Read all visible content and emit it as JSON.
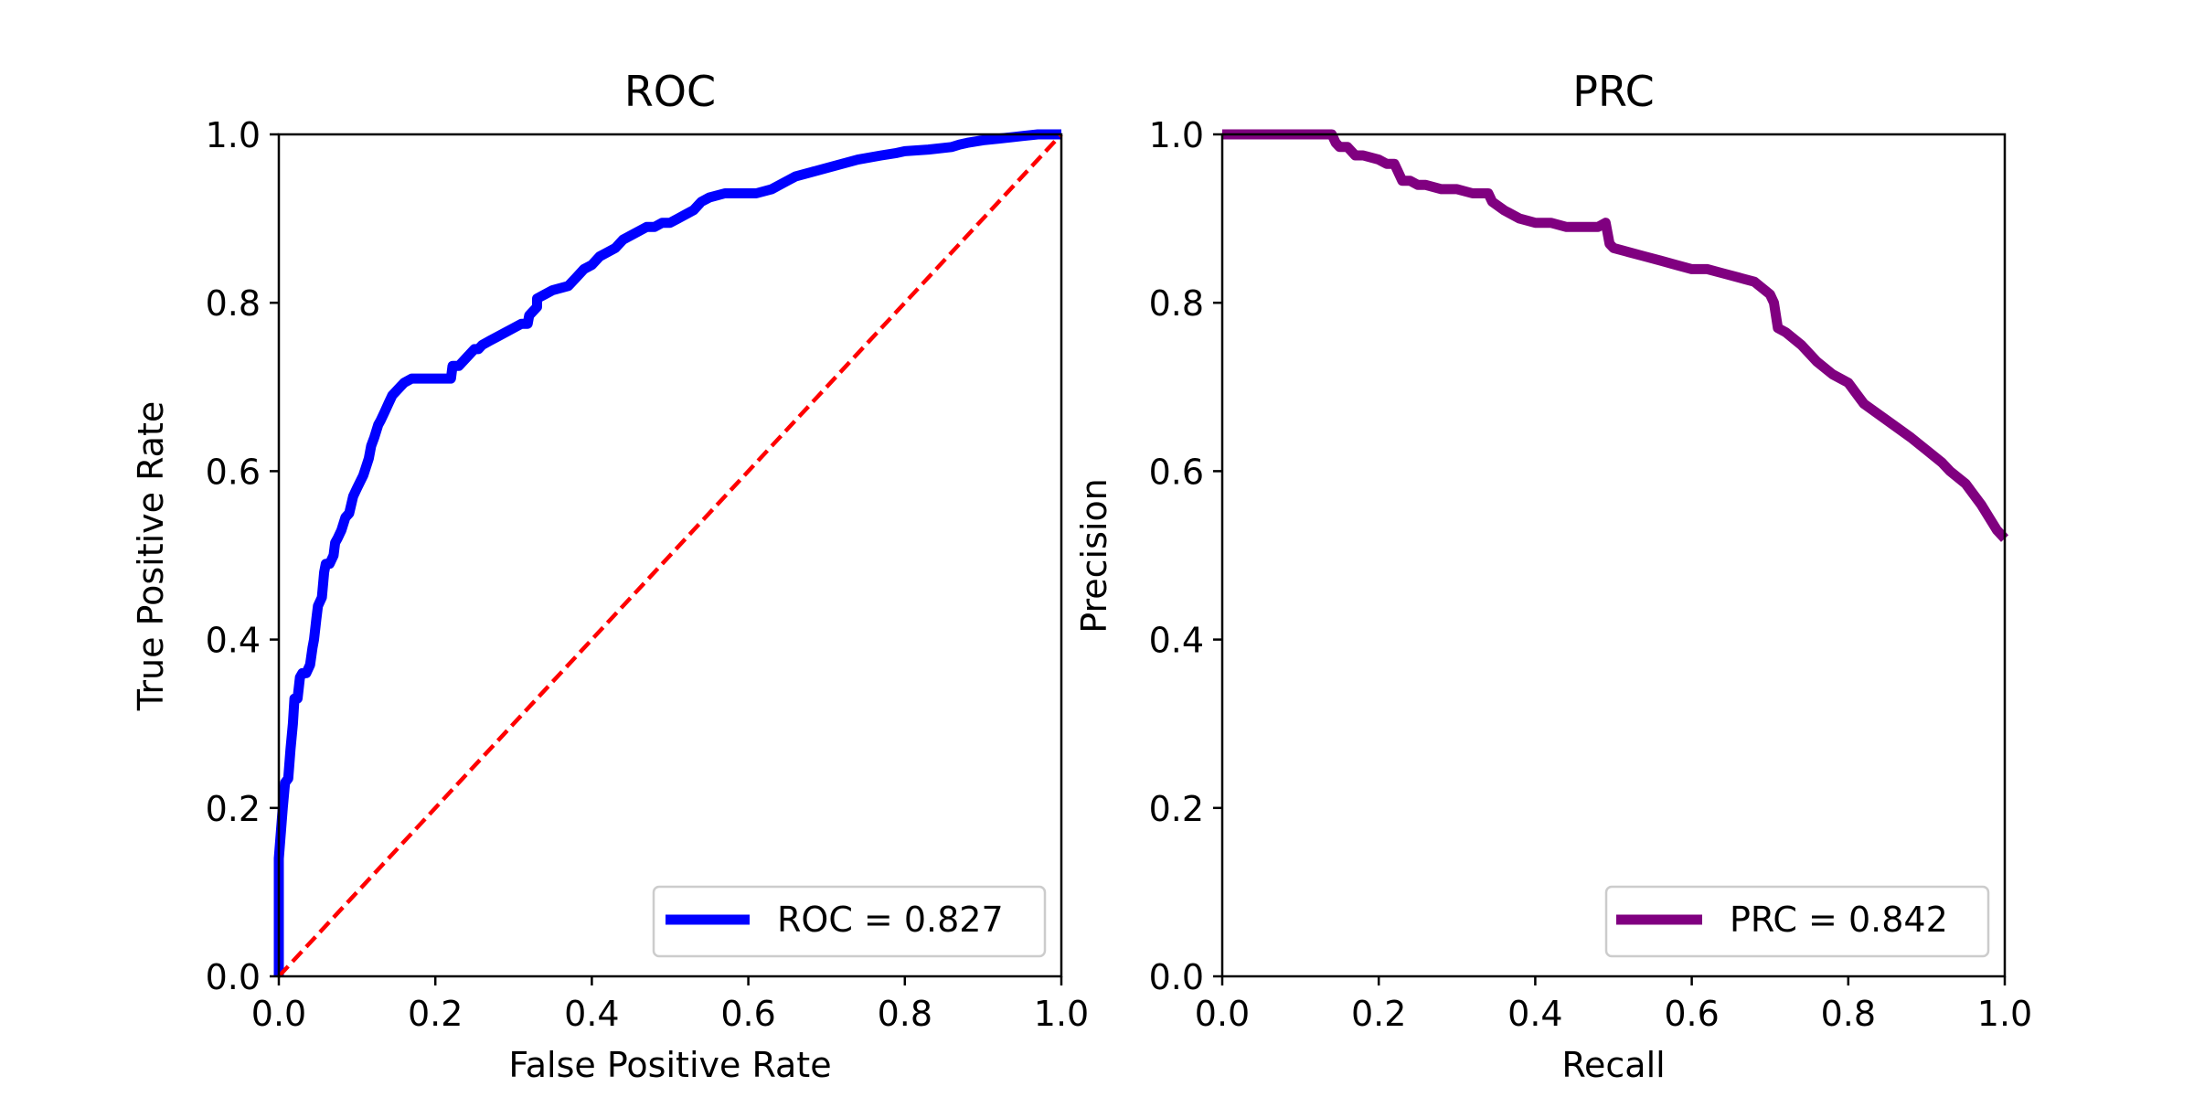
{
  "chart_data": [
    {
      "type": "line",
      "title": "ROC",
      "xlabel": "False Positive Rate",
      "ylabel": "True Positive Rate",
      "xlim": [
        0.0,
        1.0
      ],
      "ylim": [
        0.0,
        1.0
      ],
      "xticks": [
        "0.0",
        "0.2",
        "0.4",
        "0.6",
        "0.8",
        "1.0"
      ],
      "yticks": [
        "0.0",
        "0.2",
        "0.4",
        "0.6",
        "0.8",
        "1.0"
      ],
      "grid": false,
      "legend_position": "lower right",
      "legend_label": "ROC = 0.827",
      "series": [
        {
          "name": "ROC = 0.827",
          "color": "#0000ff",
          "style": "solid",
          "x": [
            0.0,
            0.0,
            0.005,
            0.008,
            0.012,
            0.015,
            0.018,
            0.02,
            0.024,
            0.027,
            0.03,
            0.033,
            0.035,
            0.04,
            0.043,
            0.045,
            0.048,
            0.05,
            0.055,
            0.058,
            0.06,
            0.065,
            0.07,
            0.072,
            0.075,
            0.08,
            0.085,
            0.09,
            0.095,
            0.1,
            0.108,
            0.115,
            0.118,
            0.122,
            0.127,
            0.13,
            0.135,
            0.14,
            0.145,
            0.15,
            0.155,
            0.16,
            0.17,
            0.175,
            0.18,
            0.19,
            0.2,
            0.21,
            0.22,
            0.222,
            0.23,
            0.24,
            0.25,
            0.255,
            0.26,
            0.27,
            0.28,
            0.3,
            0.31,
            0.318,
            0.32,
            0.33,
            0.33,
            0.34,
            0.35,
            0.37,
            0.38,
            0.39,
            0.4,
            0.41,
            0.42,
            0.43,
            0.44,
            0.45,
            0.47,
            0.48,
            0.49,
            0.5,
            0.51,
            0.52,
            0.53,
            0.54,
            0.55,
            0.57,
            0.6,
            0.61,
            0.63,
            0.65,
            0.66,
            0.68,
            0.7,
            0.72,
            0.74,
            0.77,
            0.79,
            0.8,
            0.83,
            0.86,
            0.87,
            0.88,
            0.9,
            0.92,
            0.94,
            0.95,
            0.97,
            1.0
          ],
          "y": [
            0.0,
            0.14,
            0.2,
            0.23,
            0.235,
            0.27,
            0.3,
            0.33,
            0.33,
            0.355,
            0.36,
            0.36,
            0.36,
            0.37,
            0.39,
            0.4,
            0.425,
            0.44,
            0.45,
            0.48,
            0.49,
            0.49,
            0.5,
            0.515,
            0.52,
            0.53,
            0.545,
            0.55,
            0.57,
            0.58,
            0.595,
            0.615,
            0.63,
            0.64,
            0.655,
            0.66,
            0.67,
            0.68,
            0.69,
            0.695,
            0.7,
            0.705,
            0.71,
            0.71,
            0.71,
            0.71,
            0.71,
            0.71,
            0.71,
            0.725,
            0.725,
            0.735,
            0.745,
            0.745,
            0.75,
            0.755,
            0.76,
            0.77,
            0.775,
            0.775,
            0.785,
            0.795,
            0.805,
            0.81,
            0.815,
            0.82,
            0.83,
            0.84,
            0.845,
            0.855,
            0.86,
            0.865,
            0.875,
            0.88,
            0.89,
            0.89,
            0.895,
            0.895,
            0.9,
            0.905,
            0.91,
            0.92,
            0.925,
            0.93,
            0.93,
            0.93,
            0.935,
            0.945,
            0.95,
            0.955,
            0.96,
            0.965,
            0.97,
            0.975,
            0.978,
            0.98,
            0.982,
            0.985,
            0.988,
            0.99,
            0.993,
            0.995,
            0.997,
            0.998,
            1.0,
            1.0
          ]
        },
        {
          "name": "",
          "color": "#ff0000",
          "style": "dashed",
          "x": [
            0.0,
            1.0
          ],
          "y": [
            0.0,
            1.0
          ]
        }
      ]
    },
    {
      "type": "line",
      "title": "PRC",
      "xlabel": "Recall",
      "ylabel": "Precision",
      "xlim": [
        0.0,
        1.0
      ],
      "ylim": [
        0.0,
        1.0
      ],
      "xticks": [
        "0.0",
        "0.2",
        "0.4",
        "0.6",
        "0.8",
        "1.0"
      ],
      "yticks": [
        "0.0",
        "0.2",
        "0.4",
        "0.6",
        "0.8",
        "1.0"
      ],
      "grid": false,
      "legend_position": "lower right",
      "legend_label": "PRC = 0.842",
      "series": [
        {
          "name": "PRC = 0.842",
          "color": "#800080",
          "style": "solid",
          "x": [
            0.0,
            0.14,
            0.145,
            0.15,
            0.16,
            0.17,
            0.18,
            0.2,
            0.21,
            0.22,
            0.23,
            0.24,
            0.25,
            0.26,
            0.28,
            0.3,
            0.32,
            0.34,
            0.345,
            0.36,
            0.37,
            0.38,
            0.4,
            0.42,
            0.44,
            0.46,
            0.48,
            0.49,
            0.495,
            0.5,
            0.52,
            0.54,
            0.56,
            0.58,
            0.6,
            0.62,
            0.64,
            0.66,
            0.68,
            0.7,
            0.705,
            0.71,
            0.72,
            0.74,
            0.76,
            0.78,
            0.8,
            0.82,
            0.85,
            0.88,
            0.9,
            0.92,
            0.93,
            0.95,
            0.97,
            0.98,
            0.99,
            1.0
          ],
          "y": [
            1.0,
            1.0,
            0.99,
            0.985,
            0.985,
            0.975,
            0.975,
            0.97,
            0.965,
            0.965,
            0.945,
            0.945,
            0.94,
            0.94,
            0.935,
            0.935,
            0.93,
            0.93,
            0.92,
            0.91,
            0.905,
            0.9,
            0.895,
            0.895,
            0.89,
            0.89,
            0.89,
            0.895,
            0.87,
            0.865,
            0.86,
            0.855,
            0.85,
            0.845,
            0.84,
            0.84,
            0.835,
            0.83,
            0.825,
            0.81,
            0.8,
            0.77,
            0.765,
            0.75,
            0.73,
            0.715,
            0.705,
            0.68,
            0.66,
            0.64,
            0.625,
            0.61,
            0.6,
            0.585,
            0.56,
            0.545,
            0.53,
            0.52
          ]
        }
      ]
    }
  ]
}
